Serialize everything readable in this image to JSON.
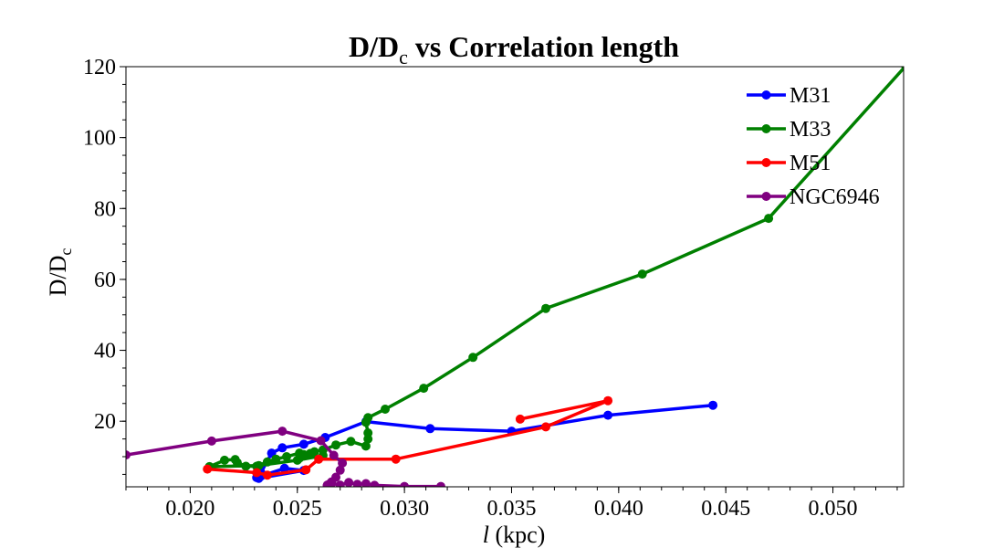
{
  "chart_data": {
    "type": "line",
    "title": {
      "main": "D/D",
      "sub": "c",
      "rest": " vs Correlation length"
    },
    "xlabel": {
      "italic": "l",
      "rest": " (kpc)"
    },
    "ylabel": {
      "main": "D/D",
      "sub": "c"
    },
    "xlim": [
      0.017,
      0.0533
    ],
    "ylim": [
      1.5,
      120
    ],
    "x_ticks": [
      0.02,
      0.025,
      0.03,
      0.035,
      0.04,
      0.045,
      0.05
    ],
    "x_tick_labels": [
      "0.020",
      "0.025",
      "0.030",
      "0.035",
      "0.040",
      "0.045",
      "0.050"
    ],
    "y_ticks": [
      20,
      40,
      60,
      80,
      100,
      120
    ],
    "y_tick_labels": [
      "20",
      "40",
      "60",
      "80",
      "100",
      "120"
    ],
    "grid": false,
    "legend_position": "top-right",
    "series": [
      {
        "name": "M31",
        "color": "#0000ff",
        "x": [
          0.0444,
          0.0395,
          0.035,
          0.0312,
          0.0282,
          0.0263,
          0.0253,
          0.0243,
          0.0238,
          0.0233,
          0.0232,
          0.0253,
          0.0244,
          0.0233,
          0.0231
        ],
        "y": [
          24.5,
          21.7,
          17.2,
          17.9,
          19.9,
          15.4,
          13.5,
          12.5,
          11.0,
          5.5,
          3.9,
          6.1,
          6.7,
          4.5,
          4.1
        ]
      },
      {
        "name": "M33",
        "color": "#008000",
        "x": [
          0.0534,
          0.047,
          0.0411,
          0.0366,
          0.0332,
          0.0309,
          0.0291,
          0.0283,
          0.0282,
          0.0283,
          0.0283,
          0.0282,
          0.0275,
          0.0268,
          0.0262,
          0.0258,
          0.0256,
          0.0253,
          0.0251,
          0.0245,
          0.024,
          0.0236,
          0.0231,
          0.0226,
          0.0222,
          0.0221,
          0.0216,
          0.0209,
          0.0232,
          0.025,
          0.0262,
          0.0251
        ],
        "y": [
          120.2,
          77.2,
          61.5,
          51.8,
          38.0,
          29.3,
          23.4,
          21.0,
          19.7,
          16.7,
          15.0,
          13.0,
          14.3,
          13.3,
          11.9,
          11.4,
          10.9,
          10.6,
          11.0,
          10.0,
          9.3,
          8.5,
          7.3,
          7.3,
          8.3,
          9.2,
          9.0,
          7.2,
          7.5,
          9.0,
          10.3,
          9.6
        ]
      },
      {
        "name": "M51",
        "color": "#ff0000",
        "x": [
          0.0354,
          0.0395,
          0.0366,
          0.0296,
          0.026,
          0.0254,
          0.0236,
          0.0231,
          0.0208
        ],
        "y": [
          20.6,
          25.8,
          18.4,
          9.3,
          9.3,
          6.3,
          4.8,
          5.5,
          6.5
        ]
      },
      {
        "name": "NGC6946",
        "color": "#800080",
        "x": [
          0.017,
          0.021,
          0.0243,
          0.0261,
          0.0267,
          0.0271,
          0.027,
          0.0268,
          0.0266,
          0.0265,
          0.0264,
          0.0264,
          0.0266,
          0.027,
          0.0274,
          0.0278,
          0.0282,
          0.0286,
          0.03,
          0.0317
        ],
        "y": [
          10.5,
          14.4,
          17.2,
          14.5,
          10.4,
          8.2,
          6.2,
          4.2,
          2.9,
          2.3,
          2.0,
          1.8,
          2.5,
          2.0,
          2.7,
          2.2,
          2.4,
          1.9,
          1.6,
          1.6
        ]
      }
    ]
  }
}
